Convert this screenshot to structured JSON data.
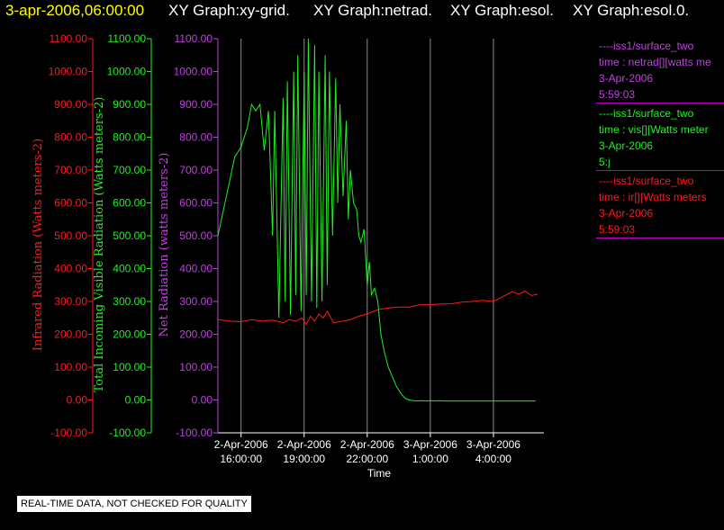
{
  "header": {
    "datetime": "3-apr-2006,06:00:00",
    "graphs": [
      "XY Graph:xy-grid.",
      "XY Graph:netrad.",
      "XY Graph:esol.",
      "XY Graph:esol.0."
    ]
  },
  "colors": {
    "infrared": "#ff1a1a",
    "visible": "#22ee22",
    "net": "#c040e0",
    "grid": "#8c8c8c",
    "axis": "#ffffff"
  },
  "legend": [
    {
      "source": "----iss1/surface_two",
      "variable": "time : netrad[][watts me",
      "date": "3-Apr-2006",
      "time": "5:59:03",
      "color": "#c040e0"
    },
    {
      "source": "----iss1/surface_two",
      "variable": "time : vis[][Watts meter",
      "date": "3-Apr-2006",
      "time": "5:j",
      "color": "#22ee22"
    },
    {
      "source": "----iss1/surface_two",
      "variable": "time : ir[][Watts meters",
      "date": "3-Apr-2006",
      "time": "5:59:03",
      "color": "#ff1a1a"
    }
  ],
  "notice": "REAL-TIME DATA, NOT CHECKED FOR QUALITY",
  "chart_data": {
    "type": "line",
    "xlabel": "Time",
    "x_ticks": [
      {
        "hour": 0,
        "date": "2-Apr-2006",
        "time": "16:00:00"
      },
      {
        "hour": 3,
        "date": "2-Apr-2006",
        "time": "19:00:00"
      },
      {
        "hour": 6,
        "date": "2-Apr-2006",
        "time": "22:00:00"
      },
      {
        "hour": 9,
        "date": "3-Apr-2006",
        "time": "1:00:00"
      },
      {
        "hour": 12,
        "date": "3-Apr-2006",
        "time": "4:00:00"
      }
    ],
    "xlim": [
      -1.1,
      14.4
    ],
    "ylim": [
      -100,
      1100
    ],
    "y_ticks": [
      -100,
      0,
      100,
      200,
      300,
      400,
      500,
      600,
      700,
      800,
      900,
      1000,
      1100
    ],
    "y_tick_labels": [
      "-100.00",
      "0.00",
      "100.00",
      "200.00",
      "300.00",
      "400.00",
      "500.00",
      "600.00",
      "700.00",
      "800.00",
      "900.00",
      "1000.00",
      "1100.00"
    ],
    "axes": [
      {
        "label": "Infrared Radiation (Watts meters-2)",
        "color": "#ff1a1a"
      },
      {
        "label": "Total Incoming Visible Radiation (Watts meters-2)",
        "color": "#22ee22"
      },
      {
        "label": "Net Radiation (watts meters-2)",
        "color": "#c040e0"
      }
    ],
    "series": [
      {
        "name": "----iss1/surface_two time : vis[][Watts meter",
        "color": "#22ee22",
        "x": [
          -1.1,
          -0.9,
          -0.6,
          -0.3,
          0.0,
          0.3,
          0.5,
          0.7,
          0.9,
          1.1,
          1.3,
          1.5,
          1.6,
          1.8,
          2.0,
          2.1,
          2.2,
          2.35,
          2.5,
          2.6,
          2.7,
          2.85,
          3.0,
          3.1,
          3.2,
          3.35,
          3.5,
          3.6,
          3.7,
          3.85,
          4.0,
          4.1,
          4.2,
          4.35,
          4.5,
          4.6,
          4.7,
          4.85,
          5.0,
          5.1,
          5.2,
          5.35,
          5.5,
          5.6,
          5.7,
          5.85,
          6.0,
          6.1,
          6.2,
          6.35,
          6.5,
          6.65,
          6.8,
          7.0,
          7.2,
          7.4,
          7.6,
          7.8,
          8.0,
          8.2,
          8.4,
          8.6,
          8.8,
          9.0,
          9.2,
          9.4,
          9.6,
          9.9,
          10.3,
          11.0,
          12.0,
          13.0,
          14.0
        ],
        "values": [
          500,
          560,
          650,
          740,
          770,
          830,
          900,
          880,
          900,
          760,
          880,
          500,
          880,
          250,
          920,
          300,
          970,
          260,
          1000,
          320,
          1050,
          270,
          1000,
          320,
          1100,
          300,
          1080,
          280,
          1000,
          300,
          1050,
          350,
          1000,
          500,
          980,
          600,
          900,
          620,
          850,
          550,
          700,
          600,
          580,
          500,
          480,
          520,
          350,
          420,
          320,
          340,
          300,
          200,
          150,
          100,
          70,
          40,
          20,
          5,
          0,
          -2,
          -3,
          -2,
          -3,
          -2,
          -3,
          -2,
          -3,
          -3,
          -3,
          -3,
          -3,
          -3,
          -3
        ]
      },
      {
        "name": "----iss1/surface_two time : ir[][Watts meters",
        "color": "#ff1a1a",
        "x": [
          -1.1,
          -0.5,
          0.0,
          0.5,
          1.0,
          1.5,
          2.0,
          2.3,
          2.6,
          2.9,
          3.1,
          3.3,
          3.5,
          3.7,
          3.9,
          4.1,
          4.4,
          4.8,
          5.2,
          5.6,
          6.0,
          6.5,
          7.0,
          7.5,
          8.0,
          8.5,
          9.0,
          9.5,
          10.0,
          10.5,
          11.0,
          11.5,
          12.0,
          12.3,
          12.6,
          12.9,
          13.2,
          13.5,
          13.8,
          14.1
        ],
        "values": [
          245,
          240,
          238,
          245,
          240,
          243,
          235,
          245,
          240,
          250,
          230,
          255,
          240,
          262,
          250,
          270,
          235,
          240,
          245,
          255,
          262,
          275,
          280,
          283,
          283,
          290,
          290,
          292,
          293,
          298,
          300,
          303,
          300,
          310,
          320,
          330,
          322,
          332,
          318,
          322
        ]
      }
    ]
  }
}
